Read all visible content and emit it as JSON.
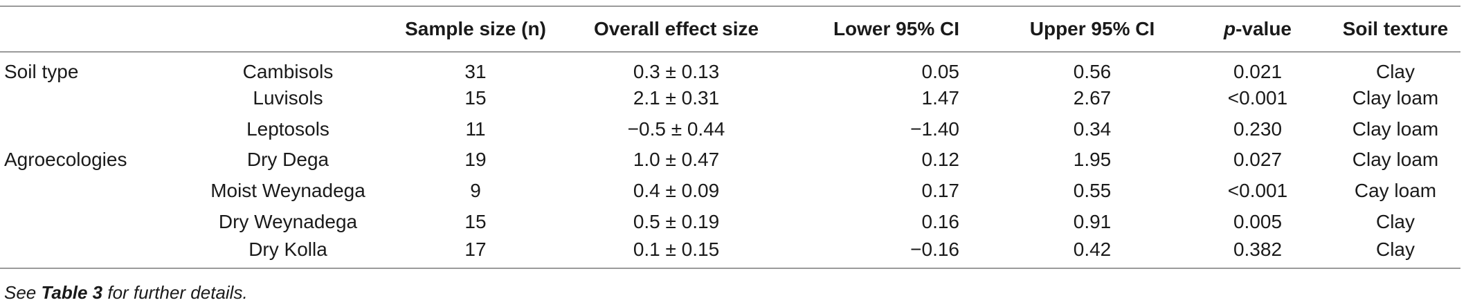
{
  "table": {
    "headers": {
      "group": "",
      "subgroup": "",
      "sample_size": "Sample size (n)",
      "effect": "Overall effect size",
      "lower": "Lower 95% CI",
      "upper": "Upper 95% CI",
      "p_italic": "p",
      "p_rest": "-value",
      "texture": "Soil texture"
    },
    "rows": [
      {
        "group": "Soil type",
        "subgroup": "Cambisols",
        "n": "31",
        "effect": "0.3 ± 0.13",
        "lower": "0.05",
        "upper": "0.56",
        "p": "0.021",
        "texture": "Clay"
      },
      {
        "group": "",
        "subgroup": "Luvisols",
        "n": "15",
        "effect": "2.1 ± 0.31",
        "lower": "1.47",
        "upper": "2.67",
        "p": "<0.001",
        "texture": "Clay loam"
      },
      {
        "group": "",
        "subgroup": "Leptosols",
        "n": "11",
        "effect": "−0.5 ± 0.44",
        "lower": "−1.40",
        "upper": "0.34",
        "p": "0.230",
        "texture": "Clay loam"
      },
      {
        "group": "Agroecologies",
        "subgroup": "Dry Dega",
        "n": "19",
        "effect": "1.0 ± 0.47",
        "lower": "0.12",
        "upper": "1.95",
        "p": "0.027",
        "texture": "Clay loam"
      },
      {
        "group": "",
        "subgroup": "Moist Weynadega",
        "n": "9",
        "effect": "0.4 ± 0.09",
        "lower": "0.17",
        "upper": "0.55",
        "p": "<0.001",
        "texture": "Cay loam"
      },
      {
        "group": "",
        "subgroup": "Dry Weynadega",
        "n": "15",
        "effect": "0.5 ± 0.19",
        "lower": "0.16",
        "upper": "0.91",
        "p": "0.005",
        "texture": "Clay"
      },
      {
        "group": "",
        "subgroup": "Dry Kolla",
        "n": "17",
        "effect": "0.1 ± 0.15",
        "lower": "−0.16",
        "upper": "0.42",
        "p": "0.382",
        "texture": "Clay"
      }
    ]
  },
  "footnote": {
    "prefix": "See ",
    "ref": "Table 3",
    "suffix": " for further details."
  }
}
